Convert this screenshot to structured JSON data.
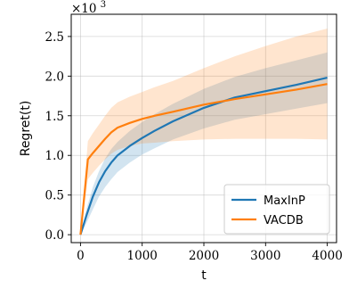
{
  "chart_data": {
    "type": "line",
    "title": "",
    "xlabel": "t",
    "ylabel": "Regret(t)",
    "y_multiplier": {
      "base": "×10",
      "exponent": "3"
    },
    "xlim": [
      -150,
      4150
    ],
    "ylim": [
      -0.1,
      2.78
    ],
    "x_ticks": [
      0,
      1000,
      2000,
      3000,
      4000
    ],
    "x_tick_labels": [
      "0",
      "1000",
      "2000",
      "3000",
      "4000"
    ],
    "y_ticks": [
      0.0,
      0.5,
      1.0,
      1.5,
      2.0,
      2.5
    ],
    "y_tick_labels": [
      "0.0",
      "0.5",
      "1.0",
      "1.5",
      "2.0",
      "2.5"
    ],
    "grid": true,
    "legend_position": "lower-right",
    "series": [
      {
        "name": "MaxInP",
        "color": "#1f77b4",
        "x": [
          0,
          100,
          200,
          300,
          400,
          500,
          600,
          800,
          1000,
          1200,
          1500,
          2000,
          2500,
          3000,
          3500,
          4000
        ],
        "y": [
          0.0,
          0.25,
          0.48,
          0.66,
          0.8,
          0.91,
          1.0,
          1.12,
          1.22,
          1.31,
          1.43,
          1.6,
          1.73,
          1.81,
          1.89,
          1.98
        ],
        "lower": [
          0.0,
          0.15,
          0.32,
          0.48,
          0.6,
          0.7,
          0.79,
          0.91,
          1.01,
          1.09,
          1.2,
          1.34,
          1.45,
          1.52,
          1.59,
          1.66
        ],
        "upper": [
          0.0,
          0.33,
          0.6,
          0.8,
          0.96,
          1.08,
          1.17,
          1.31,
          1.42,
          1.52,
          1.65,
          1.84,
          1.99,
          2.1,
          2.2,
          2.3
        ]
      },
      {
        "name": "VACDB",
        "color": "#ff7f0e",
        "x": [
          0,
          120,
          200,
          300,
          400,
          500,
          600,
          800,
          1000,
          1200,
          1500,
          2000,
          2500,
          3000,
          3500,
          4000
        ],
        "y": [
          0.0,
          0.95,
          1.03,
          1.12,
          1.21,
          1.29,
          1.35,
          1.41,
          1.46,
          1.5,
          1.55,
          1.64,
          1.71,
          1.77,
          1.83,
          1.9
        ],
        "lower": [
          0.0,
          0.7,
          0.78,
          0.87,
          0.95,
          1.02,
          1.07,
          1.12,
          1.15,
          1.16,
          1.18,
          1.2,
          1.21,
          1.21,
          1.21,
          1.2
        ],
        "upper": [
          0.0,
          1.18,
          1.28,
          1.39,
          1.5,
          1.6,
          1.67,
          1.74,
          1.8,
          1.86,
          1.94,
          2.1,
          2.25,
          2.38,
          2.5,
          2.6
        ]
      }
    ]
  }
}
